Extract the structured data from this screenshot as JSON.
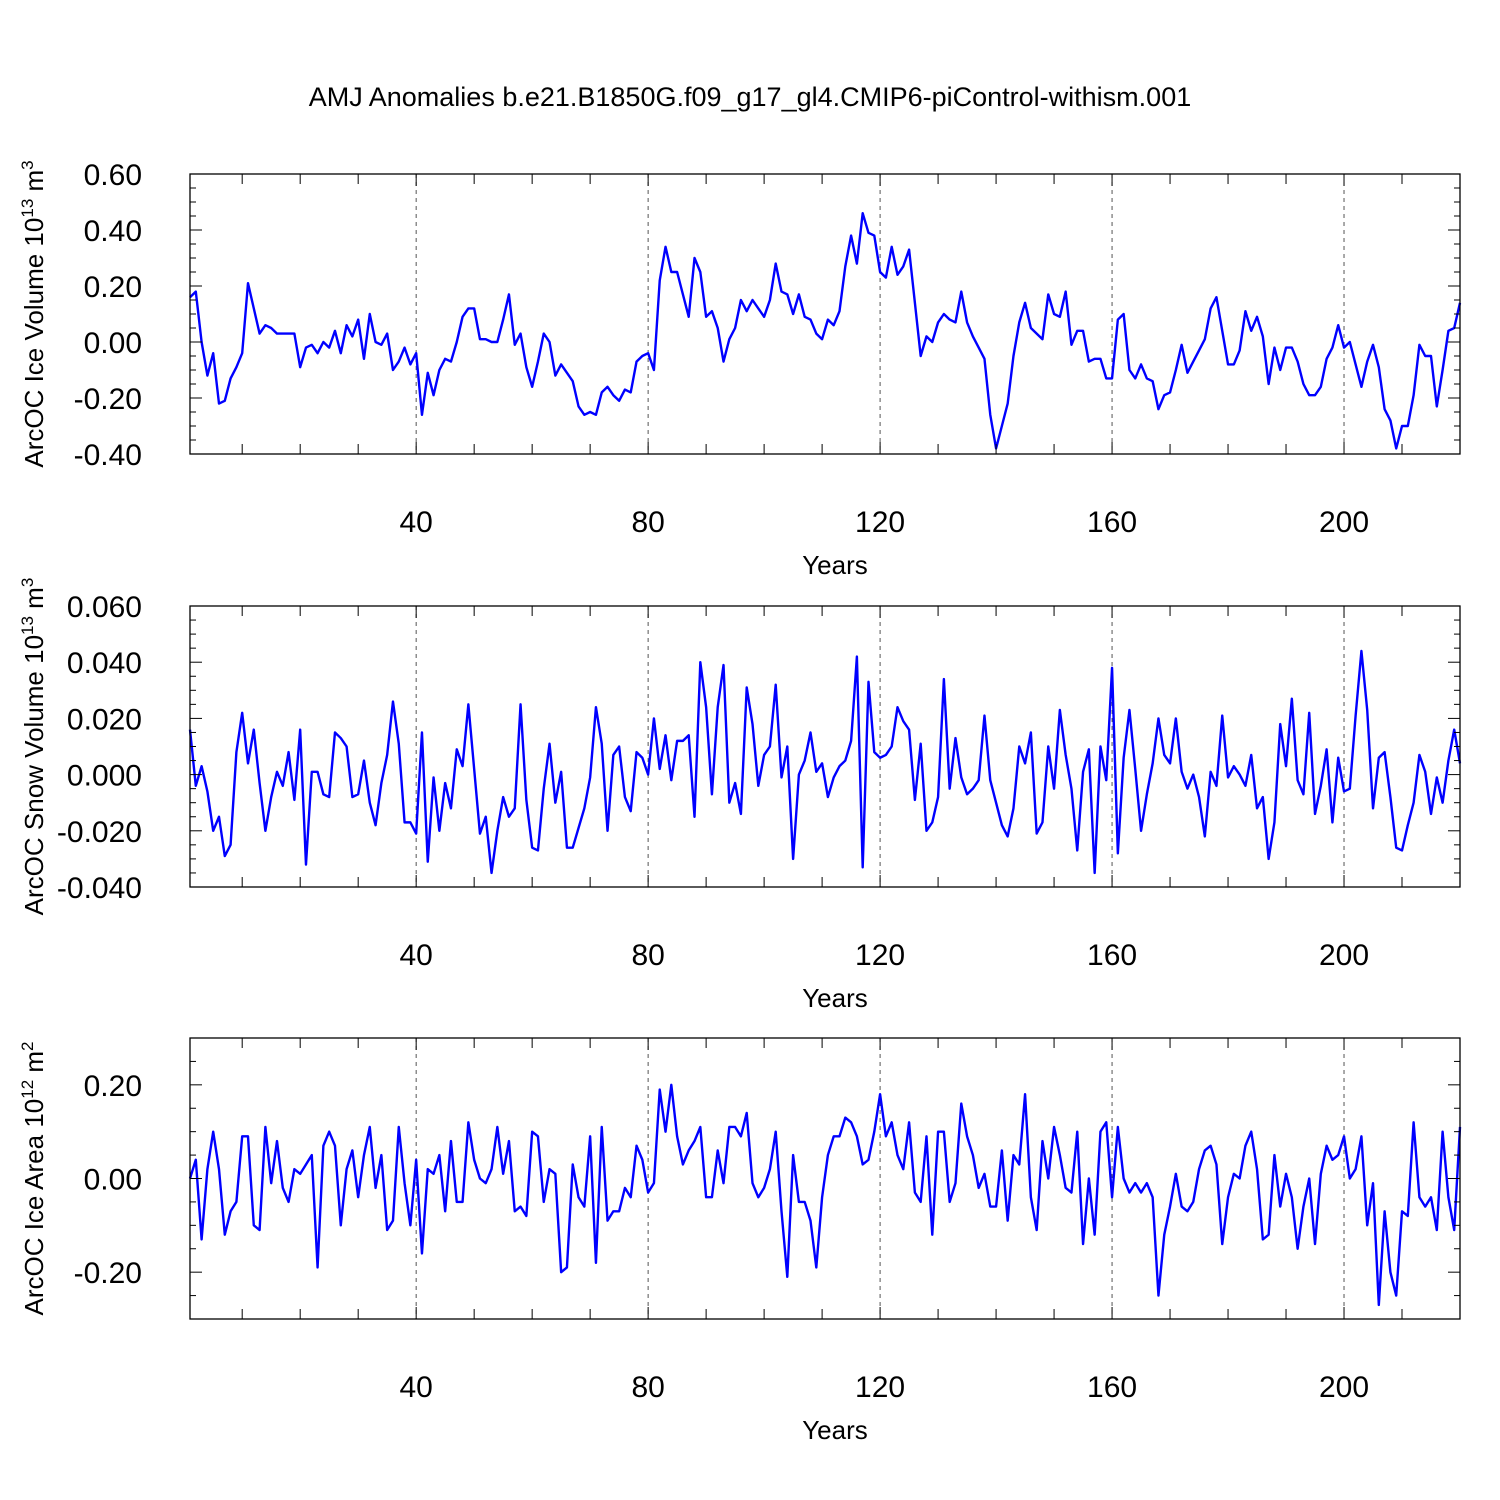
{
  "title": "AMJ Anomalies b.e21.B1850G.f09_g17_gl4.CMIP6-piControl-withism.001",
  "series_color": "#0000ff",
  "chart_data": [
    {
      "type": "line",
      "ylabel": "ArcOC Ice Volume 10",
      "ylabel_exp": "13",
      "ylabel_unit": " m",
      "ylabel_unit_exp": "3",
      "xlabel": "Years",
      "xlim": [
        1,
        220
      ],
      "ylim": [
        -0.4,
        0.6
      ],
      "xticks": [
        40,
        80,
        120,
        160,
        200
      ],
      "xtick_labels": [
        "40",
        "80",
        "120",
        "160",
        "200"
      ],
      "yticks": [
        -0.4,
        -0.2,
        0.0,
        0.2,
        0.4,
        0.6
      ],
      "ytick_labels": [
        "-0.40",
        "-0.20",
        "0.00",
        "0.20",
        "0.40",
        "0.60"
      ],
      "grid": "vertical dashed at major x ticks",
      "series": [
        {
          "name": "ArcOC Ice Volume",
          "values": [
            0.16,
            0.18,
            0.0,
            -0.12,
            -0.04,
            -0.22,
            -0.21,
            -0.13,
            -0.09,
            -0.04,
            0.21,
            0.12,
            0.03,
            0.06,
            0.05,
            0.03,
            0.03,
            0.03,
            0.03,
            -0.09,
            -0.02,
            -0.01,
            -0.04,
            0.0,
            -0.02,
            0.04,
            -0.04,
            0.06,
            0.02,
            0.08,
            -0.06,
            0.1,
            0.0,
            -0.01,
            0.03,
            -0.1,
            -0.07,
            -0.02,
            -0.08,
            -0.04,
            -0.26,
            -0.11,
            -0.19,
            -0.1,
            -0.06,
            -0.07,
            0.0,
            0.09,
            0.12,
            0.12,
            0.01,
            0.01,
            0.0,
            0.0,
            0.08,
            0.17,
            -0.01,
            0.03,
            -0.09,
            -0.16,
            -0.07,
            0.03,
            0.0,
            -0.12,
            -0.08,
            -0.11,
            -0.14,
            -0.23,
            -0.26,
            -0.25,
            -0.26,
            -0.18,
            -0.16,
            -0.19,
            -0.21,
            -0.17,
            -0.18,
            -0.07,
            -0.05,
            -0.04,
            -0.1,
            0.22,
            0.34,
            0.25,
            0.25,
            0.17,
            0.09,
            0.3,
            0.25,
            0.09,
            0.11,
            0.05,
            -0.07,
            0.01,
            0.05,
            0.15,
            0.11,
            0.15,
            0.12,
            0.09,
            0.15,
            0.28,
            0.18,
            0.17,
            0.1,
            0.17,
            0.09,
            0.08,
            0.03,
            0.01,
            0.08,
            0.06,
            0.11,
            0.27,
            0.38,
            0.28,
            0.46,
            0.39,
            0.38,
            0.25,
            0.23,
            0.34,
            0.24,
            0.27,
            0.33,
            0.14,
            -0.05,
            0.02,
            0.0,
            0.07,
            0.1,
            0.08,
            0.07,
            0.18,
            0.07,
            0.02,
            -0.02,
            -0.06,
            -0.26,
            -0.38,
            -0.3,
            -0.22,
            -0.05,
            0.07,
            0.14,
            0.05,
            0.03,
            0.01,
            0.17,
            0.1,
            0.09,
            0.18,
            -0.01,
            0.04,
            0.04,
            -0.07,
            -0.06,
            -0.06,
            -0.13,
            -0.13,
            0.08,
            0.1,
            -0.1,
            -0.13,
            -0.08,
            -0.13,
            -0.14,
            -0.24,
            -0.19,
            -0.18,
            -0.1,
            -0.01,
            -0.11,
            -0.07,
            -0.03,
            0.01,
            0.12,
            0.16,
            0.04,
            -0.08,
            -0.08,
            -0.03,
            0.11,
            0.04,
            0.09,
            0.02,
            -0.15,
            -0.02,
            -0.1,
            -0.02,
            -0.02,
            -0.07,
            -0.15,
            -0.19,
            -0.19,
            -0.16,
            -0.06,
            -0.02,
            0.06,
            -0.02,
            0.0,
            -0.08,
            -0.16,
            -0.07,
            -0.01,
            -0.09,
            -0.24,
            -0.28,
            -0.38,
            -0.3,
            -0.3,
            -0.19,
            -0.01,
            -0.05,
            -0.05,
            -0.23,
            -0.1,
            0.04,
            0.05,
            0.14
          ]
        }
      ]
    },
    {
      "type": "line",
      "ylabel": "ArcOC Snow Volume 10",
      "ylabel_exp": "13",
      "ylabel_unit": " m",
      "ylabel_unit_exp": "3",
      "xlabel": "Years",
      "xlim": [
        1,
        220
      ],
      "ylim": [
        -0.04,
        0.06
      ],
      "xticks": [
        40,
        80,
        120,
        160,
        200
      ],
      "xtick_labels": [
        "40",
        "80",
        "120",
        "160",
        "200"
      ],
      "yticks": [
        -0.04,
        -0.02,
        0.0,
        0.02,
        0.04,
        0.06
      ],
      "ytick_labels": [
        "-0.040",
        "-0.020",
        "0.000",
        "0.020",
        "0.040",
        "0.060"
      ],
      "grid": "vertical dashed at major x ticks",
      "series": [
        {
          "name": "ArcOC Snow Volume",
          "values": [
            0.016,
            -0.004,
            0.003,
            -0.006,
            -0.02,
            -0.015,
            -0.029,
            -0.025,
            0.008,
            0.022,
            0.004,
            0.016,
            -0.003,
            -0.02,
            -0.008,
            0.001,
            -0.004,
            0.008,
            -0.009,
            0.016,
            -0.032,
            0.001,
            0.001,
            -0.007,
            -0.008,
            0.015,
            0.013,
            0.01,
            -0.008,
            -0.007,
            0.005,
            -0.01,
            -0.018,
            -0.003,
            0.007,
            0.026,
            0.011,
            -0.017,
            -0.017,
            -0.021,
            0.015,
            -0.031,
            -0.001,
            -0.02,
            -0.003,
            -0.012,
            0.009,
            0.003,
            0.025,
            0.002,
            -0.021,
            -0.015,
            -0.035,
            -0.02,
            -0.008,
            -0.015,
            -0.012,
            0.025,
            -0.009,
            -0.026,
            -0.027,
            -0.005,
            0.011,
            -0.01,
            0.001,
            -0.026,
            -0.026,
            -0.019,
            -0.012,
            -0.001,
            0.024,
            0.011,
            -0.02,
            0.007,
            0.01,
            -0.008,
            -0.013,
            0.008,
            0.006,
            0.0,
            0.02,
            0.002,
            0.014,
            -0.002,
            0.012,
            0.012,
            0.014,
            -0.015,
            0.04,
            0.024,
            -0.007,
            0.024,
            0.039,
            -0.01,
            -0.003,
            -0.014,
            0.031,
            0.018,
            -0.004,
            0.007,
            0.01,
            0.032,
            -0.001,
            0.01,
            -0.03,
            0.0,
            0.005,
            0.015,
            0.001,
            0.004,
            -0.008,
            -0.001,
            0.003,
            0.005,
            0.012,
            0.042,
            -0.033,
            0.033,
            0.008,
            0.006,
            0.007,
            0.01,
            0.024,
            0.019,
            0.016,
            -0.009,
            0.011,
            -0.02,
            -0.017,
            -0.008,
            0.034,
            -0.005,
            0.013,
            -0.001,
            -0.007,
            -0.005,
            -0.002,
            0.021,
            -0.002,
            -0.01,
            -0.018,
            -0.022,
            -0.012,
            0.01,
            0.004,
            0.015,
            -0.021,
            -0.017,
            0.01,
            -0.005,
            0.023,
            0.007,
            -0.005,
            -0.027,
            0.001,
            0.009,
            -0.035,
            0.01,
            -0.002,
            0.038,
            -0.028,
            0.006,
            0.023,
            0.002,
            -0.02,
            -0.007,
            0.004,
            0.02,
            0.007,
            0.004,
            0.02,
            0.001,
            -0.005,
            0.0,
            -0.008,
            -0.022,
            0.001,
            -0.004,
            0.021,
            -0.001,
            0.003,
            0.0,
            -0.004,
            0.007,
            -0.012,
            -0.008,
            -0.03,
            -0.017,
            0.018,
            0.003,
            0.027,
            -0.002,
            -0.007,
            0.022,
            -0.014,
            -0.004,
            0.009,
            -0.017,
            0.006,
            -0.006,
            -0.005,
            0.021,
            0.044,
            0.023,
            -0.012,
            0.006,
            0.008,
            -0.008,
            -0.026,
            -0.027,
            -0.018,
            -0.01,
            0.007,
            0.001,
            -0.014,
            -0.001,
            -0.01,
            0.005,
            0.016,
            0.004
          ]
        }
      ]
    },
    {
      "type": "line",
      "ylabel": "ArcOC Ice Area 10",
      "ylabel_exp": "12",
      "ylabel_unit": " m",
      "ylabel_unit_exp": "2",
      "xlabel": "Years",
      "xlim": [
        1,
        220
      ],
      "ylim": [
        -0.3,
        0.3
      ],
      "xticks": [
        40,
        80,
        120,
        160,
        200
      ],
      "xtick_labels": [
        "40",
        "80",
        "120",
        "160",
        "200"
      ],
      "yticks": [
        -0.2,
        0.0,
        0.2
      ],
      "ytick_labels": [
        "-0.20",
        "0.00",
        "0.20"
      ],
      "grid": "vertical dashed at major x ticks",
      "series": [
        {
          "name": "ArcOC Ice Area",
          "values": [
            0.0,
            0.04,
            -0.13,
            0.02,
            0.1,
            0.02,
            -0.12,
            -0.07,
            -0.05,
            0.09,
            0.09,
            -0.1,
            -0.11,
            0.11,
            -0.01,
            0.08,
            -0.02,
            -0.05,
            0.02,
            0.01,
            0.03,
            0.05,
            -0.19,
            0.07,
            0.1,
            0.07,
            -0.1,
            0.02,
            0.06,
            -0.04,
            0.05,
            0.11,
            -0.02,
            0.05,
            -0.11,
            -0.09,
            0.11,
            -0.01,
            -0.1,
            0.04,
            -0.16,
            0.02,
            0.01,
            0.05,
            -0.07,
            0.08,
            -0.05,
            -0.05,
            0.12,
            0.04,
            0.0,
            -0.01,
            0.02,
            0.11,
            0.01,
            0.08,
            -0.07,
            -0.06,
            -0.08,
            0.1,
            0.09,
            -0.05,
            0.02,
            0.01,
            -0.2,
            -0.19,
            0.03,
            -0.04,
            -0.06,
            0.09,
            -0.18,
            0.11,
            -0.09,
            -0.07,
            -0.07,
            -0.02,
            -0.04,
            0.07,
            0.04,
            -0.03,
            -0.01,
            0.19,
            0.1,
            0.2,
            0.09,
            0.03,
            0.06,
            0.08,
            0.11,
            -0.04,
            -0.04,
            0.06,
            -0.01,
            0.11,
            0.11,
            0.09,
            0.14,
            -0.01,
            -0.04,
            -0.02,
            0.02,
            0.1,
            -0.07,
            -0.21,
            0.05,
            -0.05,
            -0.05,
            -0.09,
            -0.19,
            -0.04,
            0.05,
            0.09,
            0.09,
            0.13,
            0.12,
            0.09,
            0.03,
            0.04,
            0.1,
            0.18,
            0.09,
            0.12,
            0.05,
            0.02,
            0.12,
            -0.03,
            -0.05,
            0.09,
            -0.12,
            0.1,
            0.1,
            -0.05,
            -0.01,
            0.16,
            0.09,
            0.05,
            -0.02,
            0.01,
            -0.06,
            -0.06,
            0.06,
            -0.09,
            0.05,
            0.03,
            0.18,
            -0.04,
            -0.11,
            0.08,
            0.0,
            0.11,
            0.05,
            -0.02,
            -0.03,
            0.1,
            -0.14,
            0.0,
            -0.12,
            0.1,
            0.12,
            -0.04,
            0.11,
            0.0,
            -0.03,
            -0.01,
            -0.03,
            -0.01,
            -0.04,
            -0.25,
            -0.12,
            -0.06,
            0.01,
            -0.06,
            -0.07,
            -0.05,
            0.02,
            0.06,
            0.07,
            0.03,
            -0.14,
            -0.04,
            0.01,
            0.0,
            0.07,
            0.1,
            0.02,
            -0.13,
            -0.12,
            0.05,
            -0.06,
            0.01,
            -0.04,
            -0.15,
            -0.06,
            0.0,
            -0.14,
            0.01,
            0.07,
            0.04,
            0.05,
            0.09,
            0.0,
            0.02,
            0.09,
            -0.1,
            -0.01,
            -0.27,
            -0.07,
            -0.2,
            -0.25,
            -0.07,
            -0.08,
            0.12,
            -0.04,
            -0.06,
            -0.04,
            -0.11,
            0.1,
            -0.04,
            -0.11,
            0.11
          ]
        }
      ]
    }
  ]
}
